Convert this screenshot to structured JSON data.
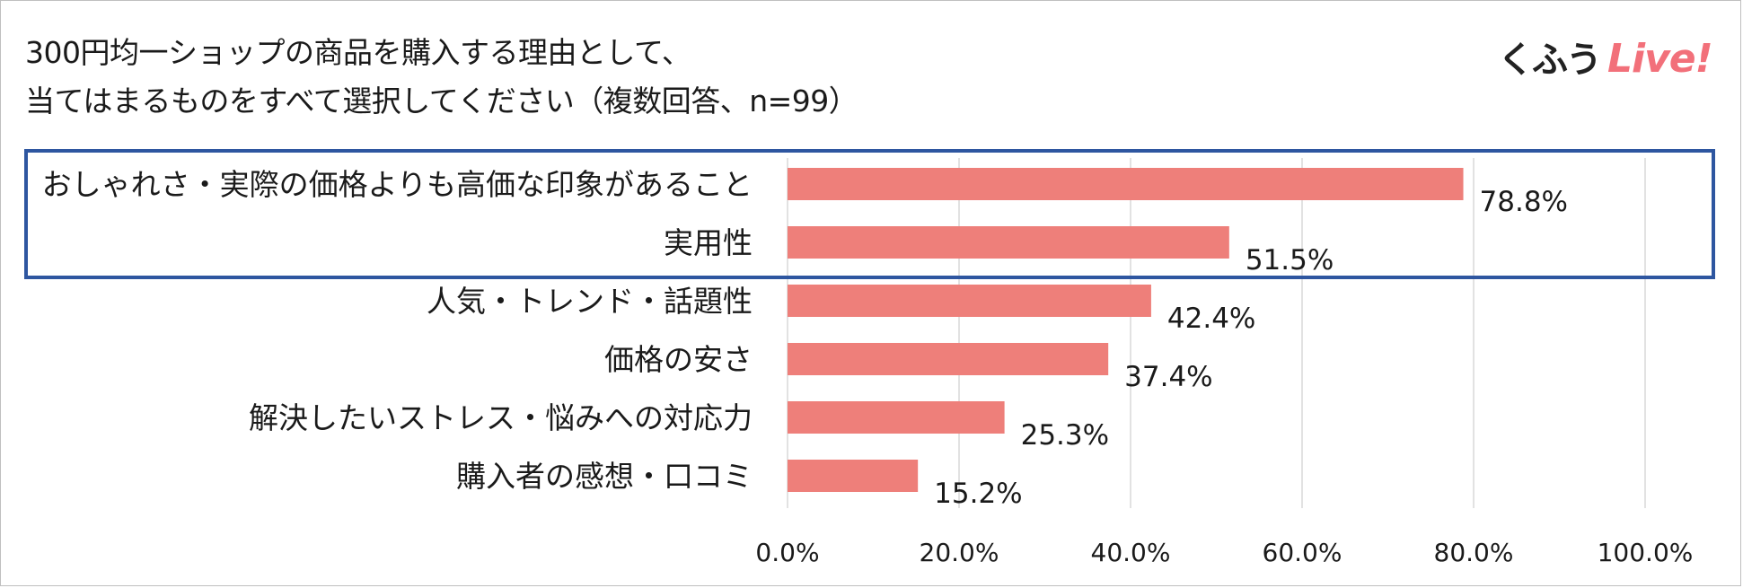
{
  "title_lines": [
    "300円均一ショップの商品を購入する理由として、",
    "当てはまるものをすべて選択してください（複数回答、n=99）"
  ],
  "logo": {
    "part1": "くふう",
    "part2": "Live!",
    "part2_color": "#f2707a"
  },
  "colors": {
    "bar": "#ee7f7a",
    "grid": "#d9d9d9",
    "highlight_border": "#2e56a0"
  },
  "chart_data": {
    "type": "bar",
    "orientation": "horizontal",
    "categories": [
      "おしゃれさ・実際の価格よりも高価な印象があること",
      "実用性",
      "人気・トレンド・話題性",
      "価格の安さ",
      "解決したいストレス・悩みへの対応力",
      "購入者の感想・口コミ"
    ],
    "values": [
      78.8,
      51.5,
      42.4,
      37.4,
      25.3,
      15.2
    ],
    "value_labels": [
      "78.8%",
      "51.5%",
      "42.4%",
      "37.4%",
      "25.3%",
      "15.2%"
    ],
    "xlim": [
      0,
      100
    ],
    "x_ticks": [
      0,
      20,
      40,
      60,
      80,
      100
    ],
    "x_tick_labels": [
      "0.0%",
      "20.0%",
      "40.0%",
      "60.0%",
      "80.0%",
      "100.0%"
    ],
    "grid": true,
    "highlighted_categories": [
      0,
      1
    ]
  }
}
